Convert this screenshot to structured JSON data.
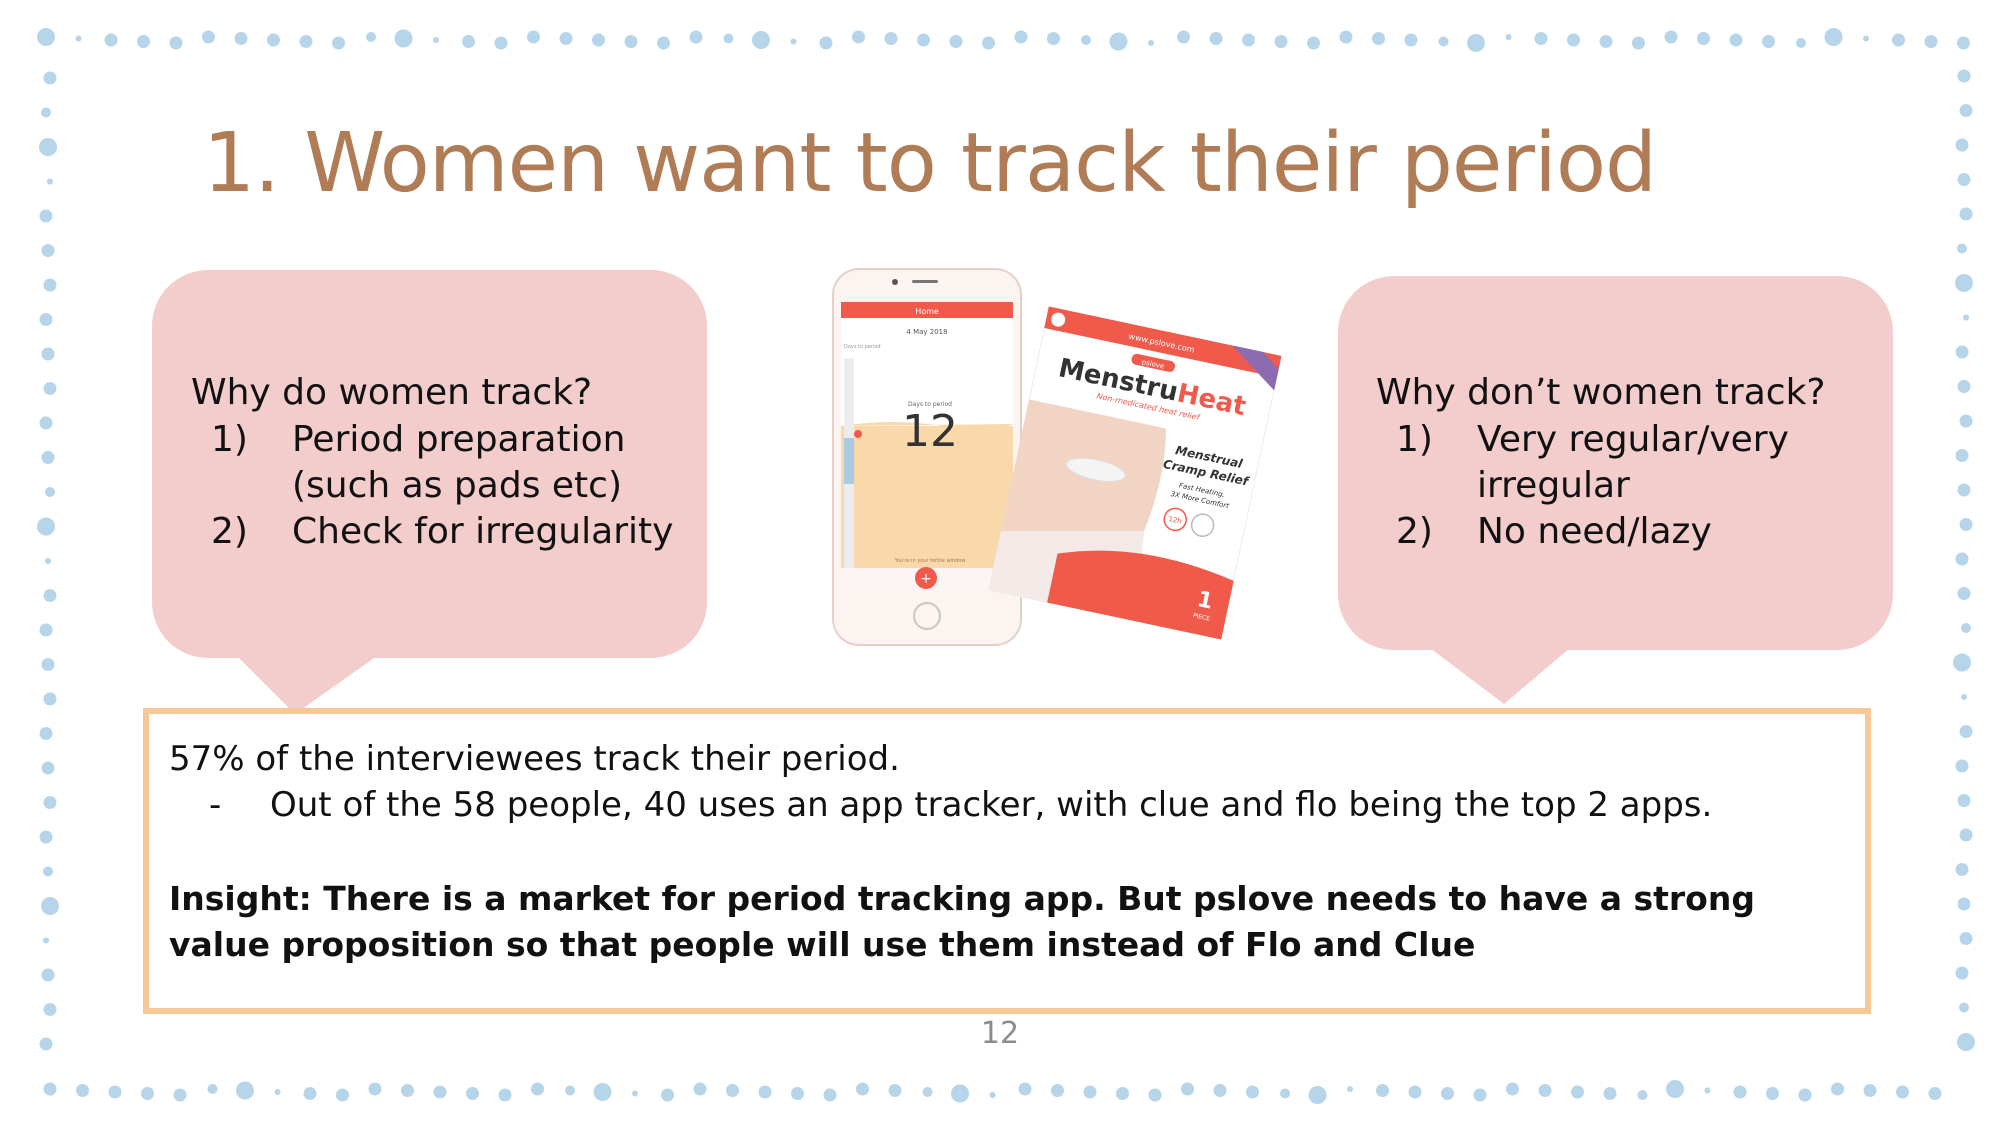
{
  "slide": {
    "title": "1. Women want to track their period",
    "page_number": "12",
    "colors": {
      "title": "#b07c55",
      "bubble": "#f3cccc",
      "insight_border": "#f6c897",
      "dots": "#b6d4ea",
      "app_header": "#ef5a4b",
      "app_body": "#f9d9a9"
    }
  },
  "left_bubble": {
    "question": "Why do women track?",
    "items": [
      {
        "num": "1)",
        "line1": "Period preparation",
        "line2": "(such as pads etc)"
      },
      {
        "num": "2)",
        "line1": "Check for irregularity"
      }
    ]
  },
  "right_bubble": {
    "question": "Why don’t women track?",
    "items": [
      {
        "num": "1)",
        "line1": "Very regular/very",
        "line2": "irregular"
      },
      {
        "num": "2)",
        "line1": "No need/lazy"
      }
    ]
  },
  "phone": {
    "header": "Home",
    "date": "4 May 2018",
    "days_label": "Days to period",
    "days_value": "12",
    "side_label": "Days to period",
    "footer": "You're in your fertile window",
    "plus": "+"
  },
  "product": {
    "url": "www.pslove.com",
    "brand": "pslove",
    "name_part1": "Menstru",
    "name_part2": "Heat",
    "tagline": "Non-medicated heat relief",
    "line1": "Menstrual",
    "line2": "Cramp Relief",
    "line3": "Fast Heating,",
    "line4": "3X More Comfort",
    "badge": "12h",
    "count": "1",
    "count_label": "PIECE"
  },
  "insight_box": {
    "stat": "57% of the interviewees track their period.",
    "bullet_dash": "-",
    "bullet": "Out of the 58 people, 40 uses an app tracker, with clue and flo being the top 2 apps.",
    "insight": "Insight: There is a market for period tracking app. But pslove needs to have a strong value proposition so that people will use them instead of Flo and Clue"
  }
}
